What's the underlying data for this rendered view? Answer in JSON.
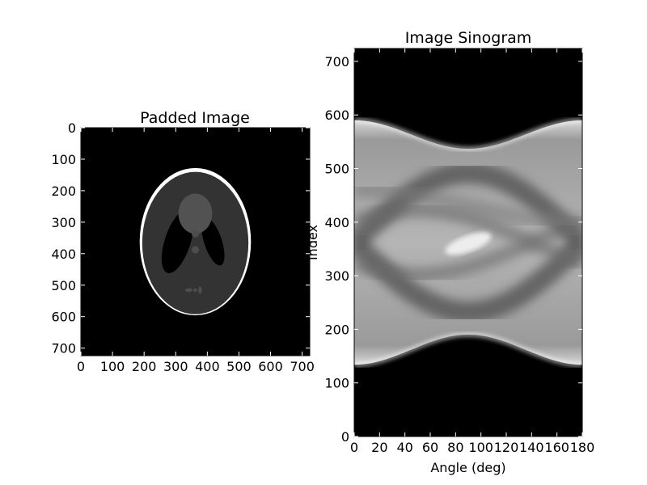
{
  "chart_data": [
    {
      "type": "heatmap",
      "title": "Padded Image",
      "xlabel": "",
      "ylabel": "",
      "xlim": [
        0,
        724
      ],
      "ylim": [
        724,
        0
      ],
      "xticks": [
        0,
        100,
        200,
        300,
        400,
        500,
        600,
        700
      ],
      "yticks": [
        0,
        100,
        200,
        300,
        400,
        500,
        600,
        700
      ],
      "colormap": "gray",
      "background_color": "#000000",
      "content": "Shepp-Logan phantom",
      "phantom": {
        "center": [
          362,
          362
        ],
        "outer_semi_axes": [
          176,
          234
        ],
        "inner_semi_axes": [
          168,
          226
        ],
        "outer_value": 1.0,
        "inner_value": 0.2
      }
    },
    {
      "type": "heatmap",
      "title": "Image Sinogram",
      "xlabel": "Angle (deg)",
      "ylabel": "Index",
      "xlim": [
        0,
        180
      ],
      "ylim": [
        0,
        724
      ],
      "xticks": [
        0,
        20,
        40,
        60,
        80,
        100,
        120,
        140,
        160,
        180
      ],
      "yticks": [
        0,
        100,
        200,
        300,
        400,
        500,
        600,
        700
      ],
      "colormap": "gray",
      "background_color": "#000000",
      "upper_boundary": {
        "at_0_deg": 590,
        "at_90_deg": 537,
        "at_180_deg": 590
      },
      "lower_boundary": {
        "at_0_deg": 134,
        "at_90_deg": 190,
        "at_180_deg": 134
      },
      "bright_peak": {
        "angle": 90,
        "index": 360
      }
    }
  ]
}
